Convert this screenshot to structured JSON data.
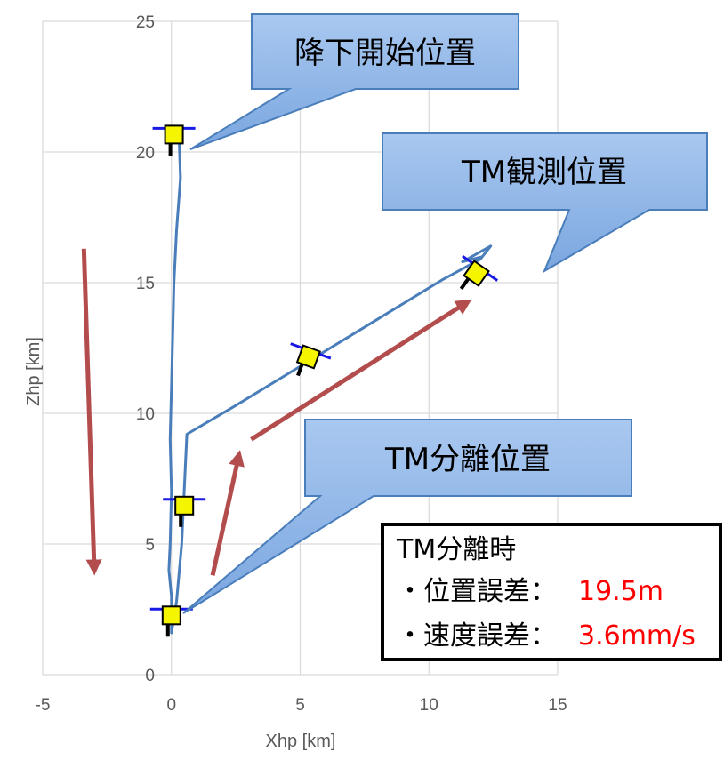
{
  "chart_data": {
    "type": "line",
    "xlabel": "Xhp [km]",
    "ylabel": "Zhp [km]",
    "xlim": [
      -5,
      15
    ],
    "ylim": [
      0,
      25
    ],
    "x_ticks": [
      -5,
      0,
      5,
      10,
      15
    ],
    "y_ticks": [
      0,
      5,
      10,
      15,
      20,
      25
    ],
    "grid": true,
    "series": [
      {
        "values": [
          [
            0.3,
            20.5
          ],
          [
            0.35,
            19.0
          ],
          [
            0.2,
            17.0
          ],
          [
            0.1,
            15.0
          ],
          [
            0.05,
            13.0
          ],
          [
            0.0,
            11.0
          ],
          [
            -0.05,
            9.0
          ],
          [
            0.0,
            7.0
          ],
          [
            -0.05,
            5.0
          ],
          [
            -0.1,
            4.0
          ],
          [
            0.0,
            3.0
          ],
          [
            0.0,
            1.6
          ],
          [
            0.2,
            2.8
          ],
          [
            0.4,
            5.0
          ],
          [
            0.6,
            9.2
          ],
          [
            2.5,
            10.3
          ],
          [
            5.0,
            11.8
          ],
          [
            8.0,
            13.6
          ],
          [
            10.5,
            15.1
          ],
          [
            12.0,
            15.9
          ],
          [
            12.4,
            16.4
          ],
          [
            11.3,
            15.8
          ],
          [
            12.1,
            16.0
          ]
        ]
      }
    ],
    "markers": [
      {
        "x": 0.1,
        "y": 20.6,
        "tilt": 0
      },
      {
        "x": 0.5,
        "y": 6.4,
        "tilt": 0
      },
      {
        "x": 0.0,
        "y": 2.2,
        "tilt": 0
      },
      {
        "x": 5.3,
        "y": 12.1,
        "tilt": 20
      },
      {
        "x": 11.8,
        "y": 15.3,
        "tilt": 35
      }
    ],
    "arrows": [
      {
        "from": [
          -3.4,
          16.3
        ],
        "to": [
          -3.0,
          4.1
        ]
      },
      {
        "from": [
          1.6,
          3.8
        ],
        "to": [
          2.6,
          8.3
        ]
      },
      {
        "from": [
          3.1,
          9.0
        ],
        "to": [
          11.4,
          14.2
        ]
      }
    ]
  },
  "callouts": {
    "descent_start": "降下開始位置",
    "tm_observe": "TM観測位置",
    "tm_separate": "TM分離位置"
  },
  "info_box": {
    "title": "TM分離時",
    "pos_label": "・位置誤差：",
    "pos_value": "19.5m",
    "vel_label": "・速度誤差：",
    "vel_value": "3.6mm/s"
  },
  "colors": {
    "line": "#4a7ebb",
    "arrow": "#b34d4d",
    "marker_body": "#f5f500",
    "marker_bar": "#1a1ae6",
    "callout_fill": "#8ab4e8",
    "callout_stroke": "#4a7ebb",
    "error_value": "#ff0000"
  }
}
